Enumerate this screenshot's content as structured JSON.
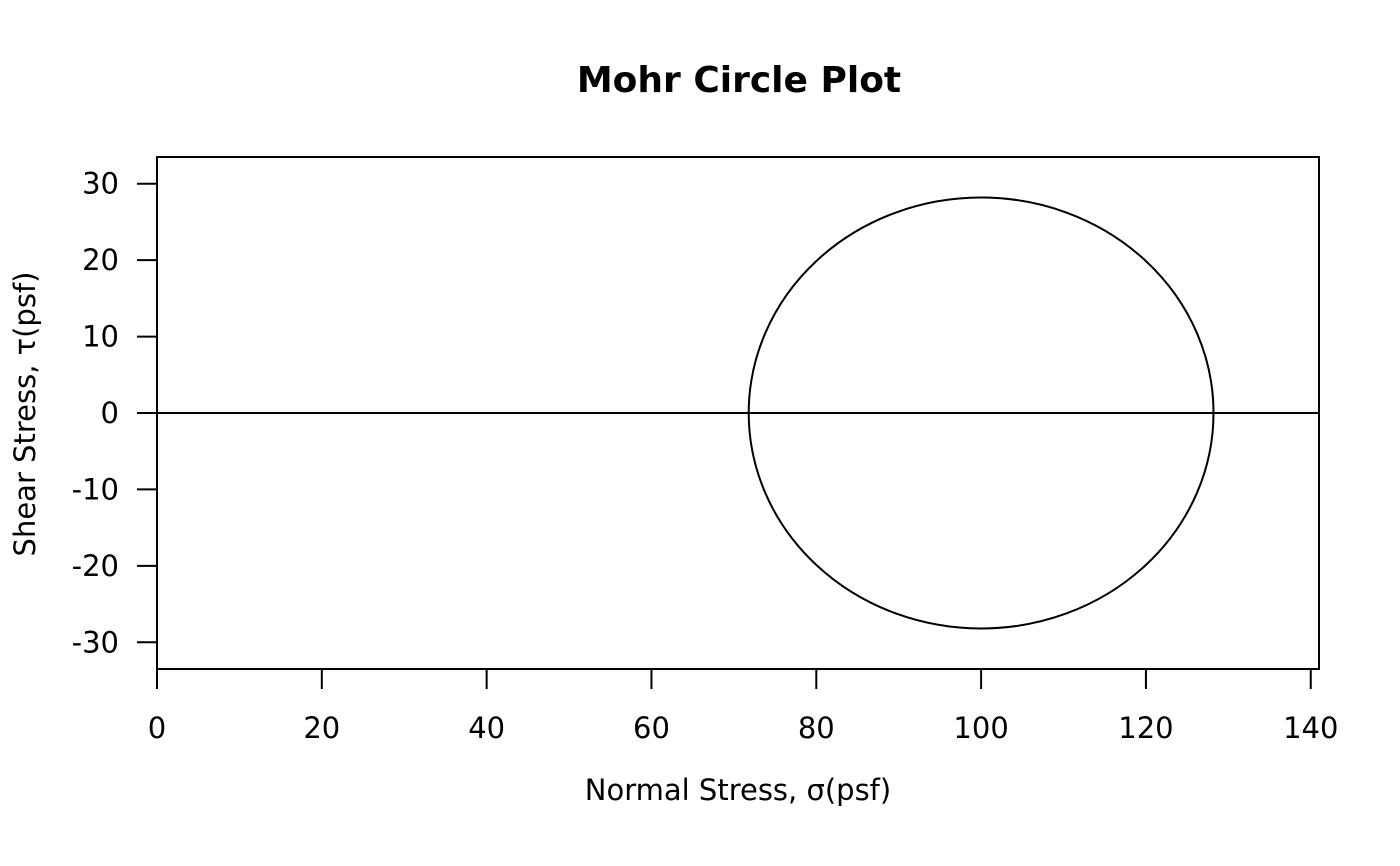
{
  "chart_data": {
    "type": "scatter",
    "title": "Mohr Circle Plot",
    "xlabel": "Normal Stress, σ(psf)",
    "ylabel": "Shear Stress, τ(psf)",
    "xlim": [
      0,
      141
    ],
    "ylim": [
      -33.5,
      33.5
    ],
    "x_ticks": [
      0,
      20,
      40,
      60,
      80,
      100,
      120,
      140
    ],
    "y_ticks": [
      -30,
      -20,
      -10,
      0,
      10,
      20,
      30
    ],
    "grid": false,
    "legend": "none",
    "circle": {
      "center_x": 100,
      "center_y": 0,
      "radius": 28.2,
      "sigma_min": 71.8,
      "sigma_max": 128.2
    },
    "reference_line": {
      "y": 0
    },
    "line_color": "#000000"
  }
}
